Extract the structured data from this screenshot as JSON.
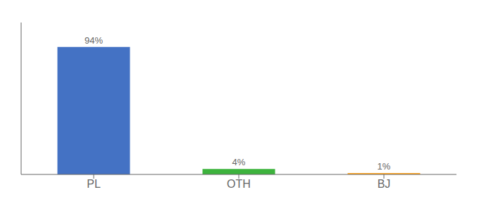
{
  "chart_data": {
    "type": "bar",
    "categories": [
      "PL",
      "OTH",
      "BJ"
    ],
    "values": [
      94,
      4,
      1
    ],
    "value_labels": [
      "94%",
      "4%",
      "1%"
    ],
    "colors": [
      "#4472c4",
      "#3db33d",
      "#ffa726"
    ],
    "ylim": [
      0,
      112
    ],
    "data_labels": true,
    "tick_labels": "x",
    "grid": false
  }
}
